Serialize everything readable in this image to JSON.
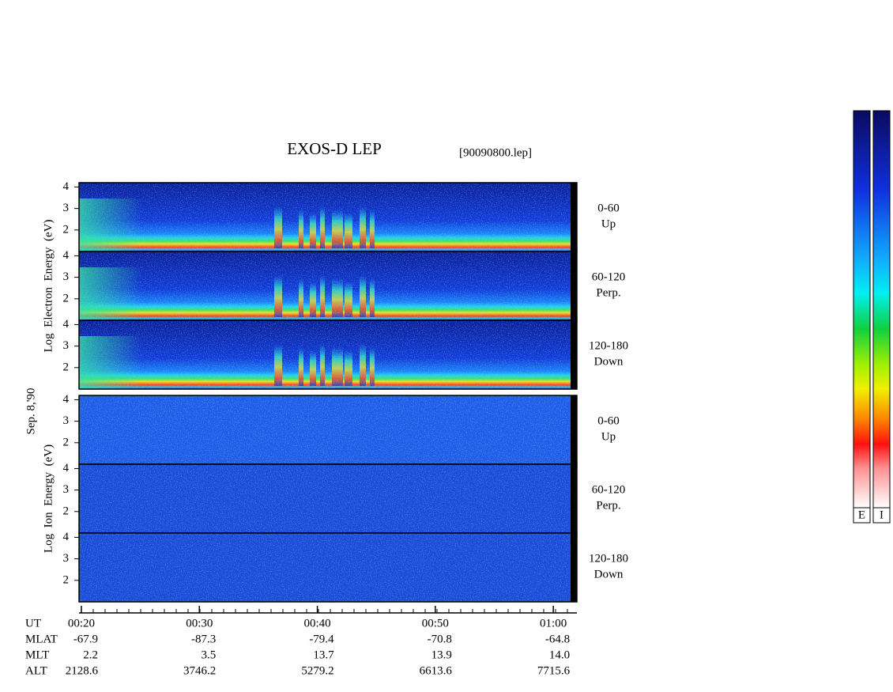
{
  "chart_data": {
    "type": "spectrogram",
    "title": "EXOS-D LEP",
    "subtitle": "[90090800.lep]",
    "date_label": "Sep. 8,'90",
    "groups": [
      {
        "ylabel": "Log  Electron  Energy  (eV)",
        "panels": [
          {
            "angle": "0-60",
            "direction": "Up"
          },
          {
            "angle": "60-120",
            "direction": "Perp."
          },
          {
            "angle": "120-180",
            "direction": "Down"
          }
        ]
      },
      {
        "ylabel": "Log  Ion  Energy  (eV)",
        "panels": [
          {
            "angle": "0-60",
            "direction": "Up"
          },
          {
            "angle": "60-120",
            "direction": "Perp."
          },
          {
            "angle": "120-180",
            "direction": "Down"
          }
        ]
      }
    ],
    "ylim": [
      1,
      4.2
    ],
    "yticks": [
      2,
      3,
      4
    ],
    "xlim": [
      19.8,
      62
    ],
    "xticks": [
      {
        "value": 20,
        "label": "00:20"
      },
      {
        "value": 30,
        "label": "00:30"
      },
      {
        "value": 40,
        "label": "00:40"
      },
      {
        "value": 50,
        "label": "00:50"
      },
      {
        "value": 60,
        "label": "01:00"
      }
    ],
    "x_row_label": "UT",
    "orbit_rows": [
      {
        "name": "MLAT",
        "values": [
          "-67.9",
          "-87.3",
          "-79.4",
          "-70.8",
          "-64.8"
        ]
      },
      {
        "name": "MLT",
        "values": [
          "2.2",
          "3.5",
          "13.7",
          "13.9",
          "14.0"
        ]
      },
      {
        "name": "ALT",
        "values": [
          "2128.6",
          "3746.2",
          "5279.2",
          "6613.6",
          "7715.6"
        ]
      }
    ],
    "colorbar_labels": [
      "E",
      "I"
    ]
  }
}
